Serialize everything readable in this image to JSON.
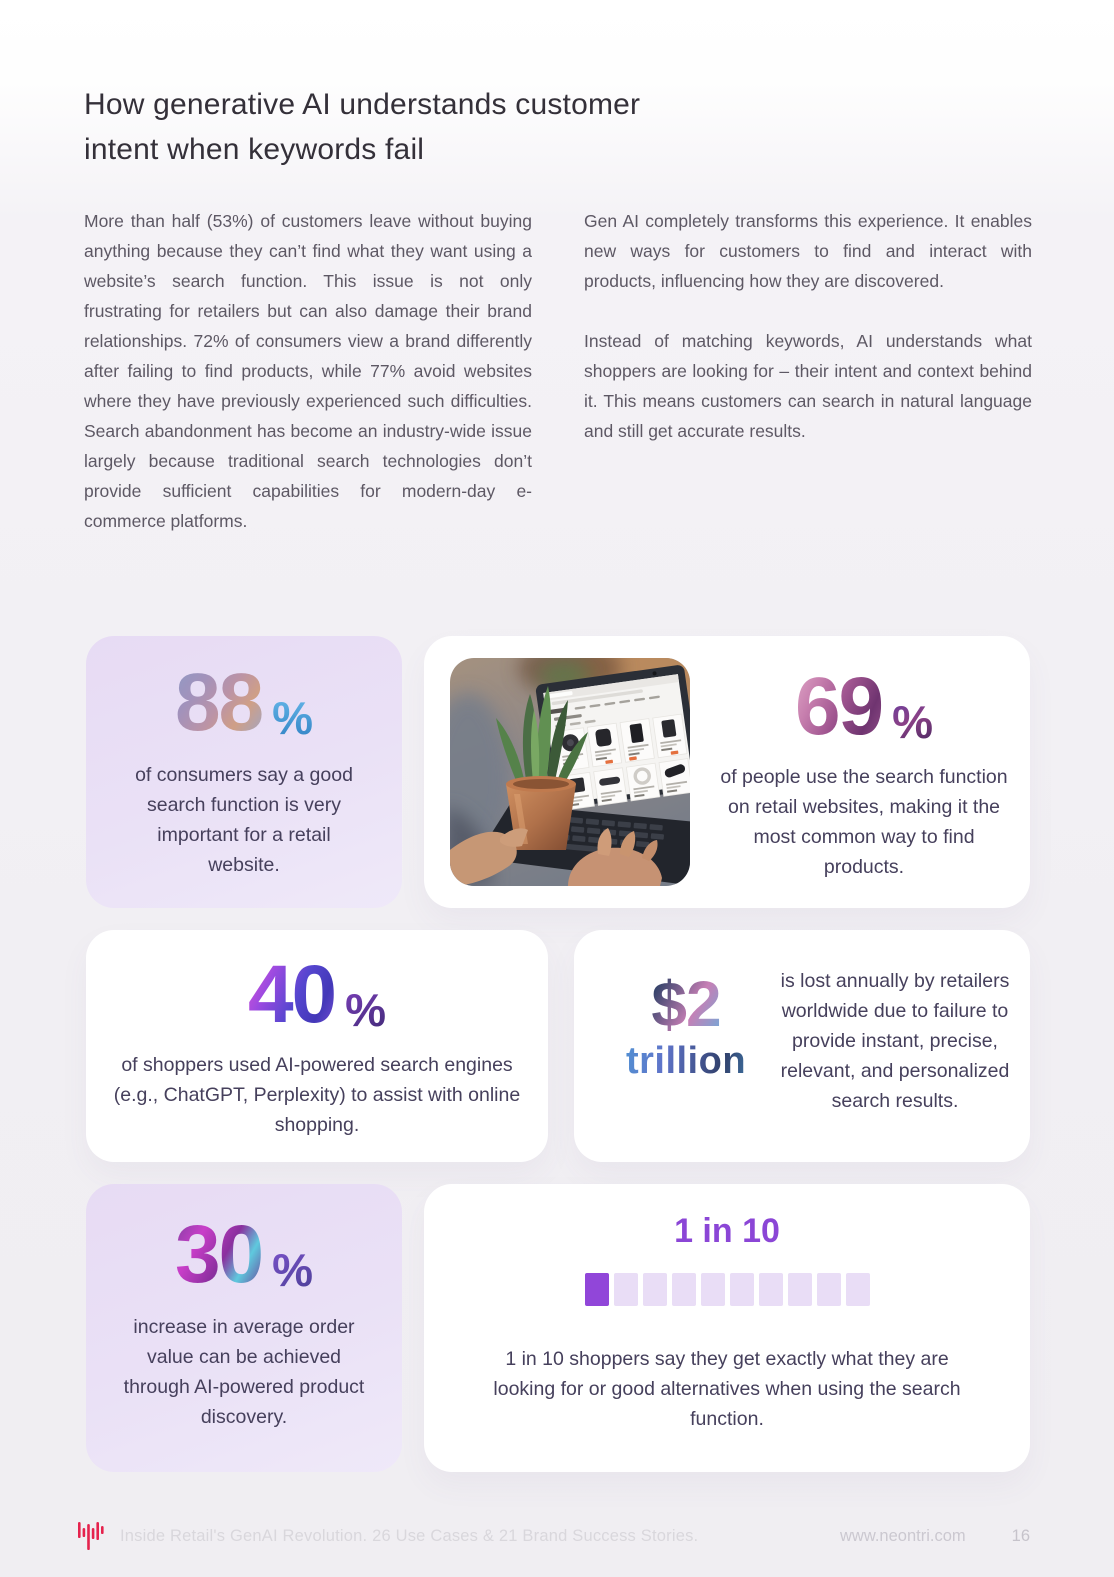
{
  "heading": {
    "line1": "How generative AI understands customer",
    "line2": "intent when keywords fail"
  },
  "intro": {
    "left_paragraph": "More than half (53%) of customers leave without buying anything because they can’t find what they want using a website’s search function. This issue is not only frustrating for retailers but can also damage their brand relationships. 72% of consumers view a brand differently after failing to find products, while 77% avoid websites where they have previously experienced such difficulties. Search abandonment has become an industry-wide issue largely because traditional search technologies don’t provide sufficient capabilities for modern-day e-commerce platforms.",
    "right_paragraphs": [
      "Gen AI completely transforms this experience. It enables new ways for customers to find and interact with products, influencing how they are discovered.",
      "Instead of matching keywords, AI understands what shoppers are looking for – their intent and context behind it. This means customers can search in natural language and still get accurate results."
    ]
  },
  "stats": {
    "consumers_88": {
      "value": "88",
      "unit": "%",
      "description": "of consumers say a good search function is very important for a retail website."
    },
    "search_69": {
      "value": "69",
      "unit": "%",
      "description": "of people use the search function on retail websites, making it the most common way to find products."
    },
    "ai_search_40": {
      "value": "40",
      "unit": "%",
      "description": "of shoppers used AI-powered search engines (e.g., ChatGPT, Perplexity) to assist with online shopping."
    },
    "two_trillion": {
      "value": "$2",
      "unit": "trillion",
      "description": "is lost annually by retailers worldwide due to failure to provide instant, precise, relevant, and personalized search results."
    },
    "aov_30": {
      "value": "30",
      "unit": "%",
      "description": "increase in average order value can be achieved through AI-powered product discovery."
    },
    "one_in_ten": {
      "headline": "1 in 10",
      "filled_segments": 1,
      "total_segments": 10,
      "description": "1 in 10 shoppers say they get exactly what they are looking for or good alternatives when using the search function."
    }
  },
  "footer": {
    "report_title": "Inside Retail's GenAI Revolution. 26 Use Cases & 21 Brand Success Stories.",
    "website": "www.neontri.com",
    "page_number": "16"
  },
  "colors": {
    "accent_purple": "#8b46d6",
    "square_filled": "#9146d9",
    "square_empty": "#e9ddf6",
    "lavender_card": "#e8def5",
    "percent_blue": "#3e9bd6",
    "logo_red": "#e5224d"
  }
}
